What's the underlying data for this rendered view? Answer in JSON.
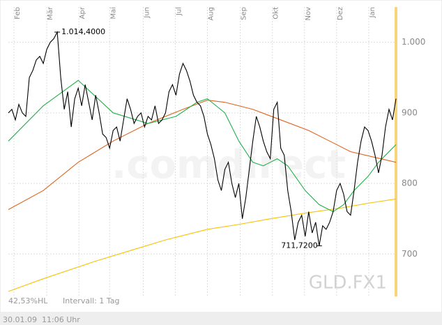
{
  "chart_data": {
    "type": "line",
    "xlim": [
      0,
      111
    ],
    "xticks": [
      {
        "value": 1.6,
        "label": "Feb"
      },
      {
        "value": 11,
        "label": "Mär"
      },
      {
        "value": 20.2,
        "label": "Apr"
      },
      {
        "value": 29,
        "label": "Mai"
      },
      {
        "value": 38.6,
        "label": "Jun"
      },
      {
        "value": 47.8,
        "label": "Jul"
      },
      {
        "value": 57,
        "label": "Aug"
      },
      {
        "value": 66.4,
        "label": "Sep"
      },
      {
        "value": 75.6,
        "label": "Okt"
      },
      {
        "value": 84.8,
        "label": "Nov"
      },
      {
        "value": 94,
        "label": "Dez"
      },
      {
        "value": 103.2,
        "label": "Jan"
      }
    ],
    "ylim": [
      640,
      1050
    ],
    "yticks": [
      700,
      800,
      900,
      {
        "value": 1000,
        "label": "1.000"
      }
    ],
    "grid": true,
    "series": [
      {
        "color": "#000000",
        "x": [
          0,
          1,
          2,
          3,
          4,
          5,
          6,
          7,
          8,
          9,
          10,
          11,
          12,
          13,
          14,
          15,
          16,
          17,
          18,
          19,
          20,
          21,
          22,
          23,
          24,
          25,
          26,
          27,
          28,
          29,
          30,
          31,
          32,
          33,
          34,
          35,
          36,
          37,
          38,
          39,
          40,
          41,
          42,
          43,
          44,
          45,
          46,
          47,
          48,
          49,
          50,
          51,
          52,
          53,
          54,
          55,
          56,
          57,
          58,
          59,
          60,
          61,
          62,
          63,
          64,
          65,
          66,
          67,
          68,
          69,
          70,
          71,
          72,
          73,
          74,
          75,
          76,
          77,
          78,
          79,
          80,
          81,
          82,
          83,
          84,
          85,
          86,
          87,
          88,
          89,
          90,
          91,
          92,
          93,
          94,
          95,
          96,
          97,
          98,
          99,
          100,
          101,
          102,
          103,
          104,
          105,
          106,
          107,
          108,
          109,
          110,
          111
        ],
        "values": [
          900,
          905,
          890,
          912,
          900,
          895,
          950,
          960,
          975,
          980,
          970,
          990,
          1000,
          1005,
          1014.4,
          950,
          905,
          930,
          880,
          920,
          935,
          910,
          940,
          915,
          890,
          925,
          900,
          870,
          865,
          850,
          875,
          880,
          860,
          890,
          920,
          905,
          885,
          895,
          900,
          880,
          895,
          890,
          910,
          885,
          890,
          900,
          930,
          940,
          925,
          955,
          970,
          960,
          945,
          925,
          915,
          910,
          895,
          870,
          855,
          835,
          805,
          790,
          820,
          830,
          800,
          780,
          800,
          750,
          780,
          820,
          860,
          895,
          880,
          860,
          845,
          835,
          905,
          915,
          850,
          840,
          790,
          760,
          720,
          745,
          755,
          725,
          760,
          730,
          745,
          711.72,
          740,
          735,
          745,
          760,
          790,
          800,
          785,
          760,
          755,
          790,
          830,
          860,
          880,
          875,
          860,
          840,
          815,
          840,
          880,
          905,
          890,
          920
        ]
      },
      {
        "color": "#22b14c",
        "x": [
          0,
          10,
          20,
          30,
          40,
          48,
          54,
          57,
          62,
          66,
          70,
          73,
          77,
          80,
          85,
          89,
          93,
          96,
          99,
          103,
          106,
          108,
          111
        ],
        "values": [
          860,
          910,
          946,
          900,
          885,
          895,
          915,
          920,
          900,
          860,
          830,
          825,
          835,
          825,
          790,
          770,
          760,
          770,
          790,
          810,
          830,
          840,
          855
        ]
      },
      {
        "color": "#e0641e",
        "x": [
          0,
          10,
          20,
          30,
          40,
          50,
          57,
          62,
          70,
          78,
          86,
          92,
          98,
          104,
          111
        ],
        "values": [
          763,
          790,
          830,
          860,
          885,
          905,
          918,
          915,
          905,
          890,
          875,
          860,
          845,
          838,
          830
        ]
      },
      {
        "color": "#f5c400",
        "x": [
          0,
          10,
          25,
          35,
          45,
          57,
          66,
          75,
          85,
          95,
          103,
          111
        ],
        "values": [
          647,
          665,
          690,
          705,
          720,
          735,
          742,
          750,
          758,
          765,
          772,
          778
        ]
      }
    ],
    "annotations": [
      {
        "text": "1.014,4000",
        "x": 14,
        "y": 1014.4
      },
      {
        "text": "711,7200",
        "x": 89,
        "y": 711.72
      }
    ],
    "watermark": ".comdirect",
    "symbol": "GLD.FX1",
    "info": [
      "42,53%HL",
      "Intervall: 1 Tag"
    ],
    "date": "30.01.09",
    "time": "11:06 Uhr"
  }
}
